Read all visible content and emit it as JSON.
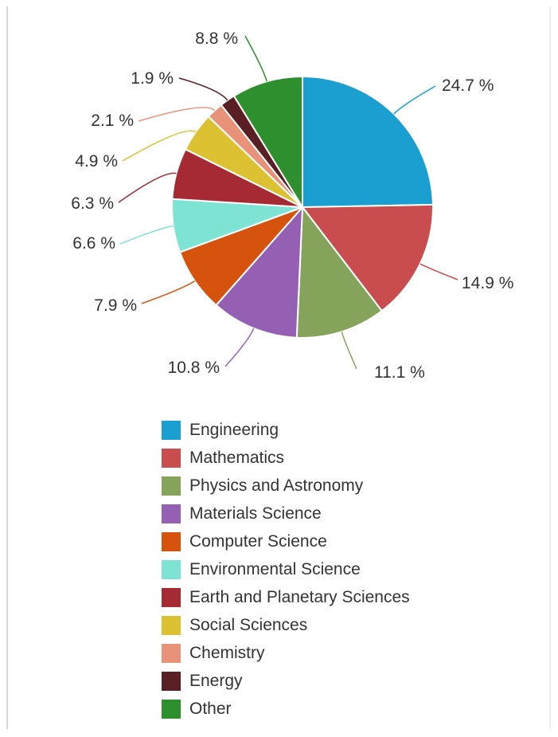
{
  "chart_data": {
    "type": "pie",
    "categories": [
      "Engineering",
      "Mathematics",
      "Physics and Astronomy",
      "Materials Science",
      "Computer Science",
      "Environmental Science",
      "Earth and Planetary Sciences",
      "Social Sciences",
      "Chemistry",
      "Energy",
      "Other"
    ],
    "values": [
      24.7,
      14.9,
      11.1,
      10.8,
      7.9,
      6.6,
      6.3,
      4.9,
      2.1,
      1.9,
      8.8
    ],
    "value_labels": [
      "24.7 %",
      "14.9 %",
      "11.1 %",
      "10.8 %",
      "7.9 %",
      "6.6 %",
      "6.3 %",
      "4.9 %",
      "2.1 %",
      "1.9 %",
      "8.8 %"
    ],
    "colors": [
      "#1a9fd0",
      "#c94c4f",
      "#85a35a",
      "#9560b3",
      "#d6530d",
      "#7fe3d4",
      "#a52a34",
      "#dcc233",
      "#e8927a",
      "#5a1f24",
      "#2e8f2e"
    ],
    "legend_position": "bottom",
    "start_angle": "12 o'clock, clockwise"
  }
}
